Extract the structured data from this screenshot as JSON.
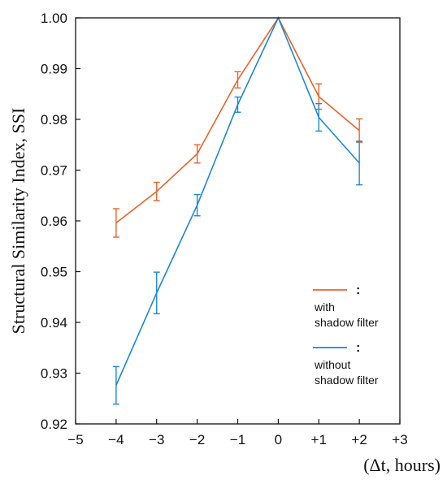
{
  "chart_data": {
    "type": "line",
    "xlabel": "(Δt, hours)",
    "ylabel": "Structural Similarity Index, SSI",
    "xlim": [
      -5,
      3
    ],
    "ylim": [
      0.92,
      1.0
    ],
    "x_ticks": [
      -5,
      -4,
      -3,
      -2,
      -1,
      0,
      1,
      2,
      3
    ],
    "x_tick_labels": [
      "−5",
      "−4",
      "−3",
      "−2",
      "−1",
      "0",
      "+1",
      "+2",
      "+3"
    ],
    "y_ticks": [
      0.92,
      0.93,
      0.94,
      0.95,
      0.96,
      0.97,
      0.98,
      0.99,
      1.0
    ],
    "y_tick_labels": [
      "0.92",
      "0.93",
      "0.94",
      "0.95",
      "0.96",
      "0.97",
      "0.98",
      "0.99",
      "1.00"
    ],
    "grid": false,
    "legend_position": "right",
    "series": [
      {
        "name": "with shadow filter",
        "legend_lines": [
          "with",
          "shadow filter"
        ],
        "color": "#E8642C",
        "x": [
          -4,
          -3,
          -2,
          -1,
          0,
          1,
          2
        ],
        "y": [
          0.9596,
          0.9658,
          0.9732,
          0.9878,
          1.0,
          0.9845,
          0.9778
        ],
        "err": [
          0.0028,
          0.0018,
          0.0018,
          0.0016,
          0.0,
          0.0025,
          0.0023
        ]
      },
      {
        "name": "without shadow filter",
        "legend_lines": [
          "without",
          "shadow filter"
        ],
        "color": "#1E88D2",
        "x": [
          -4,
          -3,
          -2,
          -1,
          0,
          1,
          2
        ],
        "y": [
          0.9276,
          0.9458,
          0.9631,
          0.9829,
          1.0,
          0.9804,
          0.9714
        ],
        "err": [
          0.0037,
          0.0041,
          0.0021,
          0.0015,
          0.0,
          0.0027,
          0.0043
        ]
      }
    ]
  }
}
